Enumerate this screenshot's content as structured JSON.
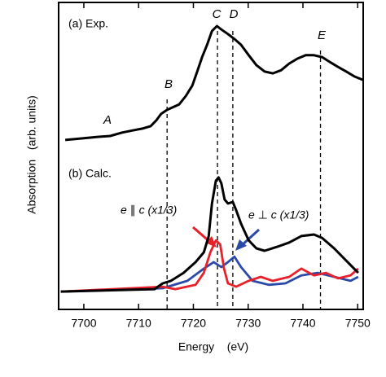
{
  "chart_data": {
    "type": "line",
    "xlabel": "Energy    (eV)",
    "ylabel": "Absorption   (arb. units)",
    "xlim": [
      7695.4,
      7751
    ],
    "ylim": [
      0,
      100
    ],
    "xticks": [
      7700,
      7710,
      7720,
      7730,
      7740,
      7750
    ],
    "panel_labels": [
      "(a) Exp.",
      "(b) Calc."
    ],
    "feature_labels": [
      "A",
      "B",
      "C",
      "D",
      "E"
    ],
    "feature_lines": [
      7715.2,
      7724.4,
      7727.2,
      7743.2
    ],
    "series_labels": [
      "e ∥ c (x1/3)",
      "e ⊥ c (x1/3)"
    ],
    "series": [
      {
        "color": "#000000",
        "x": [
          7696.6,
          7699.6,
          7702.5,
          7704.8,
          7707.0,
          7709.2,
          7710.7,
          7712.2,
          7713.2,
          7714.1,
          7715.2,
          7716.2,
          7717.4,
          7718.6,
          7719.8,
          7720.7,
          7721.6,
          7722.5,
          7723.4,
          7724.3,
          7725.1,
          7726.3,
          7727.5,
          7728.7,
          7730.1,
          7731.5,
          7733.0,
          7734.5,
          7736.0,
          7737.5,
          7739.0,
          7740.5,
          7742.0,
          7743.5,
          7744.9,
          7746.4,
          7747.9,
          7749.4,
          7750.9
        ],
        "values": [
          55.2,
          55.7,
          56.2,
          56.5,
          57.6,
          58.4,
          58.9,
          59.7,
          61.5,
          63.7,
          65.0,
          65.8,
          66.8,
          69.5,
          72.9,
          77.5,
          82.2,
          86.2,
          90.7,
          92.3,
          91.2,
          89.7,
          88.1,
          86.2,
          82.8,
          79.6,
          77.5,
          76.9,
          77.9,
          80.1,
          81.7,
          82.8,
          82.8,
          82.2,
          80.6,
          79.0,
          77.5,
          75.9,
          74.8
        ]
      },
      {
        "color": "#000000",
        "x": [
          7695.8,
          7712.9,
          7714.4,
          7715.9,
          7718.2,
          7720.4,
          7721.9,
          7722.8,
          7723.4,
          7724.1,
          7724.6,
          7725.1,
          7725.7,
          7726.3,
          7727.2,
          7727.8,
          7728.7,
          7730.1,
          7731.5,
          7733.0,
          7735.3,
          7737.5,
          7739.7,
          7742.0,
          7743.5,
          7745.7,
          7747.9,
          7750.1
        ],
        "values": [
          5.8,
          6.6,
          8.5,
          9.3,
          11.9,
          15.4,
          18.6,
          23.9,
          34.5,
          41.9,
          43.0,
          41.1,
          35.8,
          34.5,
          35.0,
          32.4,
          27.9,
          22.5,
          19.9,
          19.1,
          20.4,
          21.8,
          23.9,
          24.4,
          23.3,
          19.9,
          15.9,
          11.9
        ]
      },
      {
        "color": "#e8202a",
        "x": [
          7695.8,
          7714.4,
          7716.7,
          7720.4,
          7721.9,
          7723.1,
          7724.1,
          7724.9,
          7725.6,
          7726.3,
          7727.8,
          7730.1,
          7732.3,
          7734.5,
          7737.5,
          7739.7,
          7742.0,
          7744.2,
          7746.4,
          7748.7,
          7750.1
        ],
        "values": [
          5.8,
          7.4,
          6.6,
          8.0,
          11.9,
          18.6,
          22.5,
          21.2,
          13.3,
          8.5,
          7.4,
          9.3,
          10.6,
          9.3,
          10.6,
          13.3,
          11.1,
          11.9,
          10.1,
          11.1,
          13.3
        ]
      },
      {
        "color": "#2b4aa8",
        "x": [
          7695.8,
          7714.4,
          7718.9,
          7721.9,
          7723.7,
          7725.1,
          7726.3,
          7727.5,
          7728.7,
          7730.8,
          7733.8,
          7736.8,
          7739.7,
          7742.7,
          7745.7,
          7748.7,
          7750.1
        ],
        "values": [
          5.8,
          6.9,
          9.3,
          13.3,
          15.4,
          13.8,
          15.4,
          17.2,
          13.8,
          9.3,
          8.0,
          8.5,
          11.1,
          11.9,
          10.6,
          9.3,
          10.6
        ]
      }
    ]
  }
}
